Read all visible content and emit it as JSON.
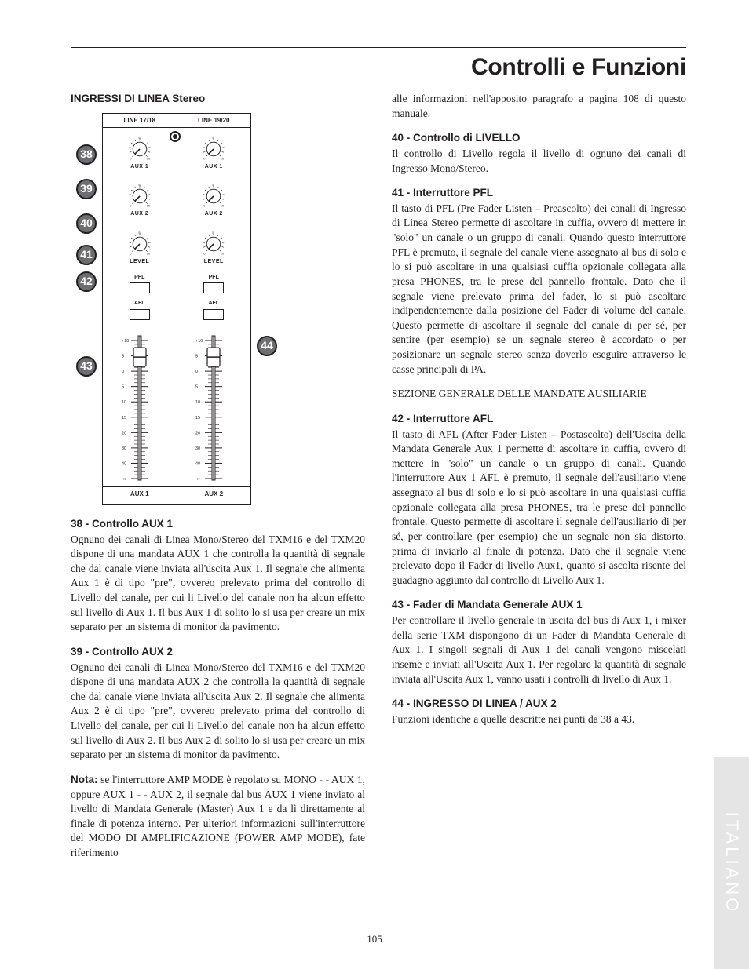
{
  "page_title": "Controlli e Funzioni",
  "page_number": "105",
  "side_tab": "ITALIANO",
  "colors": {
    "text": "#231f20",
    "badge_fill": "#6d6e71",
    "badge_border": "#231f20",
    "side_tab_bg": "#e5e5e5",
    "side_tab_text": "#ffffff",
    "rule": "#231f20"
  },
  "diagram": {
    "title": "INGRESSI DI LINEA Stereo",
    "channels": [
      {
        "label": "LINE 17/18",
        "aux_label": "AUX 1"
      },
      {
        "label": "LINE 19/20",
        "aux_label": "AUX 2"
      }
    ],
    "knob_rows": [
      {
        "label": "AUX 1",
        "scale_min": "0",
        "scale_max": "10",
        "scale_mid": "5"
      },
      {
        "label": "AUX 2",
        "scale_min": "0",
        "scale_max": "10",
        "scale_mid": "5"
      },
      {
        "label": "LEVEL",
        "scale_min": "0",
        "scale_max": "10",
        "scale_mid": "5"
      }
    ],
    "buttons": [
      {
        "label": "PFL"
      },
      {
        "label": "AFL"
      }
    ],
    "fader": {
      "scale": [
        "+10",
        "5",
        "0",
        "5",
        "10",
        "15",
        "20",
        "30",
        "40",
        "-∞"
      ],
      "knob_position": 0.12
    },
    "callouts_left": [
      "38",
      "39",
      "40",
      "41",
      "42",
      "43"
    ],
    "callouts_right": [
      "44"
    ]
  },
  "left_column": {
    "s38_h": "38 - Controllo AUX 1",
    "s38_p": "Ognuno dei canali di Linea Mono/Stereo del TXM16 e del TXM20 dispone di una mandata AUX 1 che controlla la quantità di segnale che dal canale viene inviata all'uscita Aux 1.  Il segnale che alimenta Aux 1 è di tipo \"pre\", ovvereo prelevato prima del controllo di Livello del canale, per cui li Livello del canale non ha alcun effetto sul livello di Aux 1.  Il bus Aux 1 di solito lo si usa per creare un mix separato per un sistema di monitor da pavimento.",
    "s39_h": "39 - Controllo AUX 2",
    "s39_p": "Ognuno dei canali di Linea Mono/Stereo del TXM16 e del TXM20 dispone di una mandata AUX 2 che controlla la quantità di segnale che dal canale viene inviata all'uscita Aux 2.  Il segnale che alimenta Aux 2 è di tipo \"pre\", ovvereo prelevato prima del controllo di Livello del canale, per cui li Livello del canale non ha alcun effetto sul livello di Aux 2.  Il bus Aux 2 di solito lo si usa per creare un mix separato per un sistema di monitor da pavimento.",
    "nota_label": "Nota:",
    "nota_p": "  se l'interruttore AMP MODE è regolato su MONO - - AUX 1, oppure AUX 1 - - AUX 2, il segnale dal bus AUX 1 viene inviato al livello di Mandata Generale (Master) Aux 1 e da lì direttamente al finale di potenza interno.  Per ulteriori informazioni sull'interruttore del MODO DI AMPLIFICAZIONE (POWER AMP MODE), fate riferimento"
  },
  "right_column": {
    "cont_p": "alle informazioni nell'apposito paragrafo a pagina 108 di questo manuale.",
    "s40_h": "40 - Controllo di LIVELLO",
    "s40_p": "Il controllo di Livello regola il livello di ognuno dei canali di Ingresso Mono/Stereo.",
    "s41_h": "41 - Interruttore PFL",
    "s41_p": "Il tasto di PFL (Pre Fader Listen – Preascolto) dei canali di Ingresso di Linea Stereo permette di ascoltare in cuffia, ovvero di mettere in \"solo\" un canale o un gruppo di canali.  Quando questo interruttore PFL è premuto, il segnale del canale viene assegnato al bus di solo e lo si può ascoltare in una qualsiasi cuffia opzionale collegata alla presa PHONES, tra le prese del pannello frontale.  Dato che il segnale viene prelevato prima del fader, lo si può ascoltare indipendentemente dalla posizione del Fader di volume del canale.  Questo permette di ascoltare il segnale del canale di per sé, per sentire (per esempio) se un segnale stereo è accordato o per posizionare un segnale stereo senza doverlo eseguire attraverso le casse principali di PA.",
    "sezione": "SEZIONE GENERALE DELLE MANDATE AUSILIARIE",
    "s42_h": "42 - Interruttore AFL",
    "s42_p": "Il tasto di AFL (After Fader Listen – Postascolto) dell'Uscita della Mandata Generale Aux 1 permette di ascoltare in cuffia, ovvero di mettere in \"solo\" un canale o un gruppo di canali.  Quando l'interruttore Aux 1 AFL è premuto, il segnale dell'ausiliario viene assegnato al bus di solo e lo si può ascoltare in una qualsiasi cuffia opzionale collegata alla presa PHONES, tra le prese del pannello frontale.  Questo permette di ascoltare il segnale dell'ausiliario di per sé, per controllare (per esempio) che un segnale non sia distorto, prima di inviarlo al finale di potenza.  Dato che il segnale viene prelevato dopo il Fader di livello Aux1, quanto si ascolta risente del guadagno aggiunto dal controllo di Livello Aux 1.",
    "s43_h": "43 - Fader di Mandata Generale AUX 1",
    "s43_p": "Per controllare il livello generale in uscita del bus di Aux 1, i mixer della serie TXM dispongono di un Fader di Mandata Generale di Aux 1.  I singoli segnali di Aux 1 dei canali vengono miscelati inseme e inviati all'Uscita Aux 1.  Per regolare la quantità di segnale inviata all'Uscita Aux 1, vanno usati i controlli di livello di Aux 1.",
    "s44_h": "44 - INGRESSO DI LINEA / AUX 2",
    "s44_p": "Funzioni identiche a quelle descritte nei punti da 38 a 43."
  }
}
